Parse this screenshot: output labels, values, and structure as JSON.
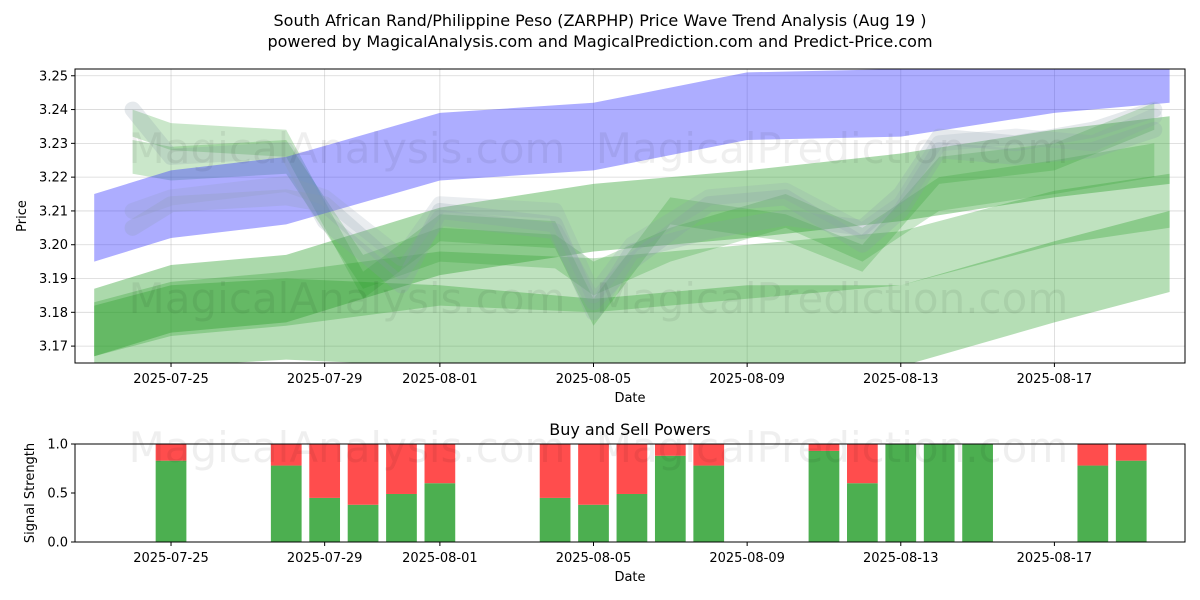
{
  "title_line1": "South African Rand/Philippine Peso (ZARPHP) Price Wave Trend Analysis (Aug 19 )",
  "title_line2": "powered by MagicalAnalysis.com and MagicalPrediction.com and Predict-Price.com",
  "watermarks": [
    "MagicalAnalysis.com",
    "MagicalPrediction.com"
  ],
  "colors": {
    "blue": "#3333ff",
    "green": "#2ca02c",
    "buy": "#4caf50",
    "sell": "#ff4d4d",
    "gray": "#8899aa"
  },
  "chart_data": [
    {
      "type": "line",
      "title": "",
      "xlabel": "Date",
      "ylabel": "Price",
      "ylim": [
        3.165,
        3.252
      ],
      "yticks": [
        3.17,
        3.18,
        3.19,
        3.2,
        3.21,
        3.22,
        3.23,
        3.24,
        3.25
      ],
      "ytick_labels": [
        "3.17",
        "3.18",
        "3.19",
        "3.20",
        "3.21",
        "3.22",
        "3.23",
        "3.24",
        "3.25"
      ],
      "xlim_day": [
        -1.5,
        27.4
      ],
      "xticks_day": [
        1,
        5,
        8,
        12,
        16,
        20,
        24
      ],
      "xtick_labels": [
        "2025-07-25",
        "2025-07-29",
        "2025-08-01",
        "2025-08-05",
        "2025-08-09",
        "2025-08-13",
        "2025-08-17"
      ],
      "day_note": "day 0 = 2025-07-24",
      "blue_band": {
        "x": [
          -1,
          1,
          4,
          8,
          12,
          16,
          20,
          24,
          27
        ],
        "center": [
          3.205,
          3.212,
          3.216,
          3.229,
          3.232,
          3.241,
          3.242,
          3.249,
          3.252
        ],
        "halfwidth": 0.01
      },
      "green_bands": [
        {
          "x": [
            -1,
            1,
            4,
            8,
            12,
            16,
            20,
            24,
            27
          ],
          "center": [
            3.177,
            3.184,
            3.187,
            3.201,
            3.208,
            3.212,
            3.217,
            3.224,
            3.228
          ],
          "halfwidth": 0.01,
          "opacity": 0.4
        },
        {
          "x": [
            -1,
            1,
            4,
            8,
            12,
            16,
            20,
            24,
            27
          ],
          "center": [
            3.17,
            3.176,
            3.178,
            3.176,
            3.172,
            3.176,
            3.176,
            3.189,
            3.198
          ],
          "halfwidth": 0.012,
          "opacity": 0.35
        },
        {
          "x": [
            -1,
            1,
            4,
            8,
            12,
            16,
            20,
            24,
            27
          ],
          "center": [
            3.175,
            3.181,
            3.184,
            3.19,
            3.188,
            3.192,
            3.196,
            3.208,
            3.213
          ],
          "halfwidth": 0.008,
          "opacity": 0.3
        },
        {
          "x": [
            0,
            1,
            4,
            6,
            8,
            11,
            12,
            14,
            17,
            19,
            21,
            24,
            26.6
          ],
          "center": [
            3.236,
            3.232,
            3.23,
            3.188,
            3.205,
            3.203,
            3.18,
            3.21,
            3.205,
            3.196,
            3.222,
            3.226,
            3.238
          ],
          "halfwidth": 0.004,
          "opacity": 0.25
        },
        {
          "x": [
            0,
            1,
            4,
            6,
            8,
            11,
            12,
            14,
            17,
            19,
            21,
            24,
            26.6
          ],
          "center": [
            3.226,
            3.224,
            3.226,
            3.192,
            3.2,
            3.198,
            3.19,
            3.2,
            3.21,
            3.2,
            3.215,
            3.22,
            3.225
          ],
          "halfwidth": 0.005,
          "opacity": 0.25
        }
      ],
      "gray_lines": [
        {
          "x": [
            0,
            1,
            4,
            5,
            7,
            8,
            11,
            12,
            13,
            15,
            17,
            19,
            20,
            21,
            23,
            25,
            26.6
          ],
          "y": [
            3.24,
            3.226,
            3.228,
            3.207,
            3.188,
            3.21,
            3.206,
            3.18,
            3.198,
            3.204,
            3.208,
            3.205,
            3.215,
            3.232,
            3.23,
            3.234,
            3.24
          ],
          "opacity": 0.22
        },
        {
          "x": [
            0,
            1,
            4,
            5,
            7,
            8,
            11,
            12,
            13,
            15,
            17,
            19,
            20,
            21,
            23,
            25,
            26.6
          ],
          "y": [
            3.205,
            3.212,
            3.214,
            3.212,
            3.192,
            3.208,
            3.204,
            3.183,
            3.195,
            3.212,
            3.214,
            3.2,
            3.21,
            3.228,
            3.226,
            3.228,
            3.234
          ],
          "opacity": 0.22
        },
        {
          "x": [
            0,
            1,
            4,
            5,
            7,
            8,
            11,
            12,
            13,
            15,
            17,
            19,
            20,
            21,
            23,
            25,
            26.6
          ],
          "y": [
            3.21,
            3.214,
            3.218,
            3.214,
            3.196,
            3.212,
            3.21,
            3.185,
            3.2,
            3.214,
            3.216,
            3.204,
            3.212,
            3.23,
            3.232,
            3.23,
            3.238
          ],
          "opacity": 0.18
        }
      ]
    },
    {
      "type": "bar",
      "title": "Buy and Sell Powers",
      "xlabel": "Date",
      "ylabel": "Signal Strength",
      "ylim": [
        0,
        1.0
      ],
      "yticks": [
        0.0,
        0.5,
        1.0
      ],
      "ytick_labels": [
        "0.0",
        "0.5",
        "1.0"
      ],
      "xticks_day": [
        1,
        5,
        8,
        12,
        16,
        20,
        24
      ],
      "xtick_labels": [
        "2025-07-25",
        "2025-07-29",
        "2025-08-01",
        "2025-08-05",
        "2025-08-09",
        "2025-08-13",
        "2025-08-17"
      ],
      "bars": [
        {
          "day": 1,
          "buy": 0.83
        },
        {
          "day": 4,
          "buy": 0.78
        },
        {
          "day": 5,
          "buy": 0.45
        },
        {
          "day": 6,
          "buy": 0.38
        },
        {
          "day": 7,
          "buy": 0.49
        },
        {
          "day": 8,
          "buy": 0.6
        },
        {
          "day": 11,
          "buy": 0.45
        },
        {
          "day": 12,
          "buy": 0.38
        },
        {
          "day": 13,
          "buy": 0.49
        },
        {
          "day": 14,
          "buy": 0.88
        },
        {
          "day": 15,
          "buy": 0.78
        },
        {
          "day": 18,
          "buy": 0.93
        },
        {
          "day": 19,
          "buy": 0.6
        },
        {
          "day": 20,
          "buy": 1.0
        },
        {
          "day": 21,
          "buy": 1.0
        },
        {
          "day": 22,
          "buy": 1.0
        },
        {
          "day": 25,
          "buy": 0.78
        },
        {
          "day": 26,
          "buy": 0.83
        }
      ]
    }
  ]
}
